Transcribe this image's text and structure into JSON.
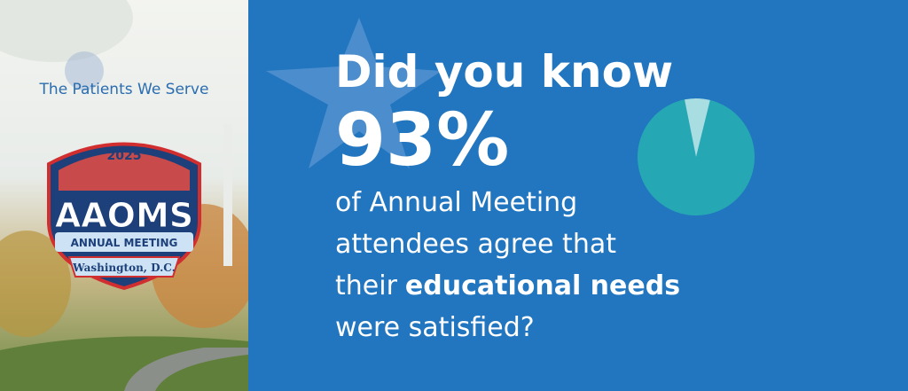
{
  "left_panel": {
    "tagline": "The Patients We Serve",
    "logo": {
      "year": "2025",
      "name": "AAOMS",
      "event": "ANNUAL MEETING",
      "location": "Washington, D.C."
    }
  },
  "headline": "Did you know",
  "stat": {
    "value": 93,
    "label": "93%"
  },
  "body": {
    "lines": [
      {
        "text": "of Annual Meeting"
      },
      {
        "text": "attendees agree that"
      },
      {
        "text": "their",
        "emphasis": "educational needs"
      },
      {
        "text": "were satisfied?"
      }
    ]
  },
  "pie": {
    "values": [
      93,
      7
    ],
    "colors": [
      "#26a8b4",
      "#a8dde2"
    ]
  }
}
